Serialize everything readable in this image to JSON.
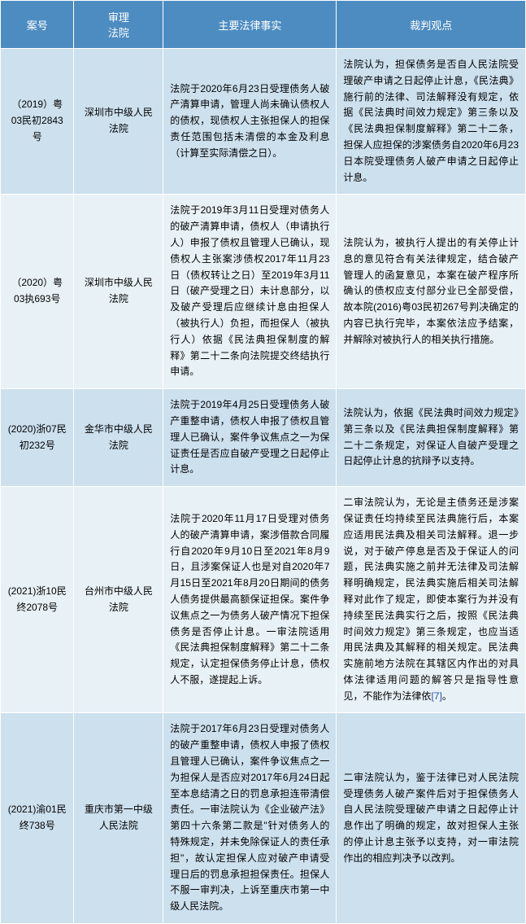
{
  "style": {
    "header_bg": "#4d8cc1",
    "header_color": "#ffffff",
    "row_even_bg": "#cce0ee",
    "row_odd_bg": "#e8f1f6",
    "font_size_th": "13px",
    "font_size_td": "12px",
    "link_color": "#2657a6",
    "col_widths": [
      "14%",
      "17%",
      "33%",
      "36%"
    ]
  },
  "headers": [
    "案号",
    "审理\n法院",
    "主要法律事实",
    "裁判观点"
  ],
  "rows": [
    {
      "case_no": "（2019）粤03民初2843号",
      "court": "深圳市中级人民法院",
      "facts": "法院于2020年6月23日受理债务人破产清算申请，管理人尚未确认债权人的债权，现债权人主张担保人的担保责任范围包括未清偿的本金及利息（计算至实际清偿之日）。",
      "opinion": "法院认为，担保债务是否自人民法院受理破产申请之日起停止计息，《民法典》施行前的法律、司法解释没有规定，依据《民法典时间效力规定》第三条以及《民法典担保制度解释》第二十二条，担保人应担保的涉案债务自2020年6月23日本院受理债务人破产申请之日起停止计息。"
    },
    {
      "case_no": "（2020）粤03执693号",
      "court": "深圳市中级人民法院",
      "facts": "法院于2019年3月11日受理对债务人的破产清算申请，债权人（申请执行人）申报了债权且管理人已确认，现债权人主张案涉债权2017年11月23日（债权转让之日）至2019年3月11日（破产受理之日）未计息部分，以及破产受理后应继续计息由担保人（被执行人）负担，而担保人（被执行人）依据《民法典担保制度的解释》第二十二条向法院提交终结执行申请。",
      "opinion": "法院认为，被执行人提出的有关停止计息的意见符合有关法律规定，结合破产管理人的函复意见，本案在破产程序所确认的债权应支付部分业已全部受偿，故本院(2016)粤03民初267号判决确定的内容已执行完毕，本案依法应予结案，并解除对被执行人的相关执行措施。"
    },
    {
      "case_no": "(2020)浙07民初232号",
      "court": "金华市中级人民法院",
      "facts": "法院于2019年4月25日受理债务人破产重整申请，债权人申报了债权且管理人已确认，案件争议焦点之一为保证责任是否应自破产受理之日起停止计息。",
      "opinion": "法院认为，依据《民法典时间效力规定》第三条以及《民法典担保制度解释》第二十二条规定，对保证人自破产受理之日起停止计息的抗辩予以支持。"
    },
    {
      "case_no": "(2021)浙10民终2078号",
      "court": "台州市中级人民法院",
      "facts": "法院于2020年11月17日受理对债务人的破产清算申请，案涉借款合同履行自2020年9月10日至2021年8月9日，且涉案保证人也是对自2020年7月15日至2021年8月20日期间的债务人债务提供最高额保证担保。案件争议焦点之一为债务人破产情况下担保债务是否停止计息。一审法院适用《民法典担保制度解释》第二十二条规定，认定担保债务停止计息，债权人不服，遂提起上诉。",
      "opinion": "二审法院认为，无论是主债务还是涉案保证责任均持续至民法典施行后，本案应适用民法典及相关司法解释。退一步说，对于破产停息是否及于保证人的问题，民法典实施之前并无法律及司法解释明确规定，民法典实施后相关司法解释对此作了规定，即使本案行为并没有持续至民法典实行之后，按照《民法典时间效力规定》第三条规定，也应当适用民法典及其解释的相关规定。民法典实施前地方法院在其辖区内作出的对具体法律适用问题的解答只是指导性意见，不能作为法律依",
      "ref": "[7]",
      "opinion_after": "。"
    },
    {
      "case_no": "(2021)渝01民终738号",
      "court": "重庆市第一中级人民法院",
      "facts": "法院于2017年6月23日受理对债务人的破产重整申请，债权人申报了债权且管理人已确认，案件争议焦点之一为担保人是否应对2017年6月24日起至本息结清之日的罚息承担连带清偿责任。一审法院认为《企业破产法》第四十六条第二款是\"针对债务人的特殊规定，并未免除保证人的责任承担\"，故认定担保人应对破产申请受理日后的罚息承担担保责任。担保人不服一审判决，上诉至重庆市第一中级人民法院。",
      "opinion": "二审法院认为，鉴于法律已对人民法院受理债务人破产案件后对于担保债务人自人民法院受理破产申请之日起停止计息作出了明确的规定，故对担保人主张的停止计息主张予以支持，对一审法院作出的相应判决予以改判。"
    }
  ]
}
